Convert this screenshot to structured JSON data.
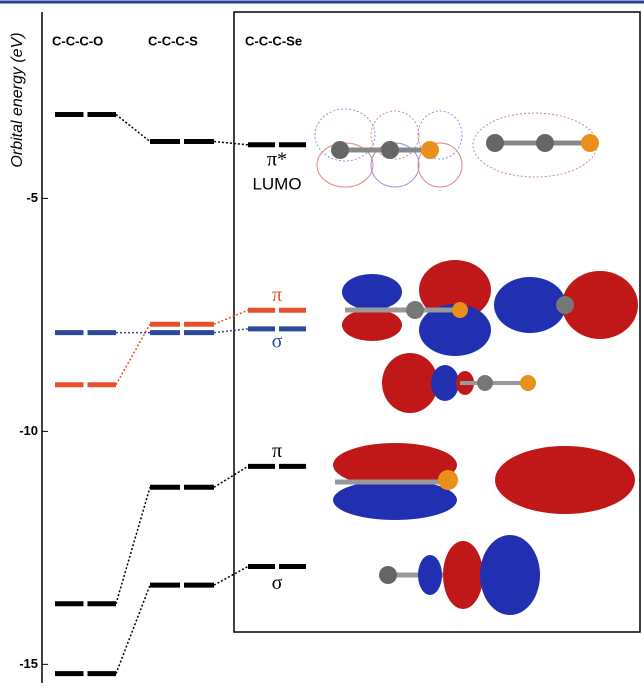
{
  "chart_data": {
    "type": "energy-levels",
    "y_label": "Orbital energy (eV)",
    "categories": [
      "C-C-C-O",
      "C-C-C-S",
      "C-C-C-Se"
    ],
    "ylim": [
      -15.4,
      -1
    ],
    "yticks": [
      -5,
      -10,
      -15
    ],
    "series": [
      {
        "name": "π*",
        "sublabel": "LUMO",
        "color": "#000000",
        "values": [
          -3.2,
          -3.78,
          -3.85
        ]
      },
      {
        "name": "π",
        "color": "#e8502a",
        "values": [
          -9.0,
          -7.7,
          -7.4
        ]
      },
      {
        "name": "σ",
        "color": "#2b4a9b",
        "values": [
          -7.88,
          -7.88,
          -7.8
        ]
      },
      {
        "name": "π",
        "color": "#000000",
        "values": [
          -13.7,
          -11.2,
          -10.75
        ]
      },
      {
        "name": "σ",
        "color": "#000000",
        "values": [
          -15.2,
          -13.3,
          -12.9
        ]
      }
    ]
  }
}
